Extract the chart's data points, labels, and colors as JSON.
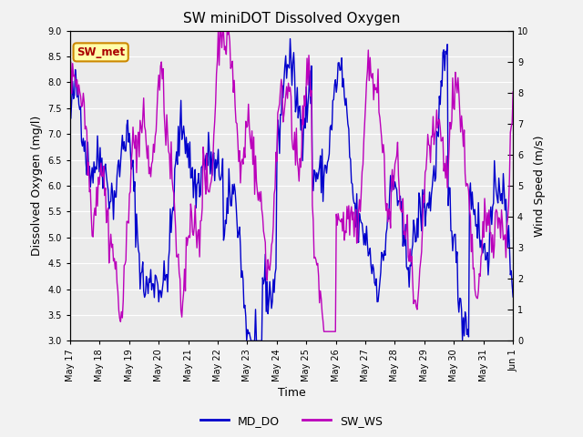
{
  "title": "SW miniDOT Dissolved Oxygen",
  "xlabel": "Time",
  "ylabel_left": "Dissolved Oxygen (mg/l)",
  "ylabel_right": "Wind Speed (m/s)",
  "annotation": "SW_met",
  "ylim_left": [
    3.0,
    9.0
  ],
  "ylim_right": [
    0.0,
    10.0
  ],
  "yticks_left": [
    3.0,
    3.5,
    4.0,
    4.5,
    5.0,
    5.5,
    6.0,
    6.5,
    7.0,
    7.5,
    8.0,
    8.5,
    9.0
  ],
  "yticks_right": [
    0.0,
    1.0,
    2.0,
    3.0,
    4.0,
    5.0,
    6.0,
    7.0,
    8.0,
    9.0,
    10.0
  ],
  "color_MD_DO": "#0000cc",
  "color_SW_WS": "#bb00bb",
  "legend_labels": [
    "MD_DO",
    "SW_WS"
  ],
  "bg_color": "#e8e8e8",
  "plot_bg_color": "#ebebeb",
  "annotation_box_color": "#ffffaa",
  "annotation_text_color": "#aa0000",
  "annotation_edge_color": "#cc8800",
  "tick_labels": [
    "May 17",
    "May 18",
    "May 19",
    "May 20",
    "May 21",
    "May 22",
    "May 23",
    "May 24",
    "May 25",
    "May 26",
    "May 27",
    "May 28",
    "May 29",
    "May 30",
    "May 31",
    "Jun 1"
  ],
  "num_points": 500,
  "title_fontsize": 11,
  "label_fontsize": 9,
  "tick_fontsize": 7,
  "legend_fontsize": 9
}
